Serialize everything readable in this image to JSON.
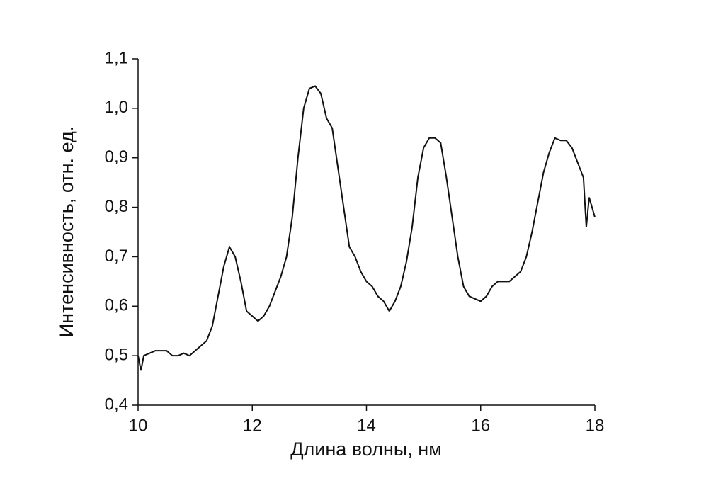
{
  "chart_data": {
    "type": "line",
    "x_label": "Длина волны, нм",
    "y_label": "Интенсивность, отн. ед.",
    "xlim": [
      10,
      18
    ],
    "xticks": [
      10,
      12,
      14,
      16,
      18
    ],
    "ylim": [
      0.4,
      1.1
    ],
    "yticks": [
      {
        "value": 0.4,
        "label": "0,4"
      },
      {
        "value": 0.5,
        "label": "0,5"
      },
      {
        "value": 0.6,
        "label": "0,6"
      },
      {
        "value": 0.7,
        "label": "0,7"
      },
      {
        "value": 0.8,
        "label": "0,8"
      },
      {
        "value": 0.9,
        "label": "0,9"
      },
      {
        "value": 1.0,
        "label": "1,0"
      },
      {
        "value": 1.1,
        "label": "1,1"
      }
    ],
    "color": "#111111",
    "x": [
      10.0,
      10.05,
      10.1,
      10.2,
      10.3,
      10.4,
      10.5,
      10.6,
      10.7,
      10.8,
      10.9,
      11.0,
      11.1,
      11.2,
      11.3,
      11.4,
      11.5,
      11.6,
      11.7,
      11.8,
      11.9,
      12.0,
      12.1,
      12.2,
      12.3,
      12.4,
      12.5,
      12.6,
      12.7,
      12.8,
      12.9,
      13.0,
      13.1,
      13.2,
      13.3,
      13.4,
      13.5,
      13.6,
      13.7,
      13.8,
      13.9,
      14.0,
      14.1,
      14.2,
      14.3,
      14.4,
      14.5,
      14.6,
      14.7,
      14.8,
      14.9,
      15.0,
      15.1,
      15.2,
      15.3,
      15.4,
      15.5,
      15.6,
      15.7,
      15.8,
      15.9,
      16.0,
      16.1,
      16.2,
      16.3,
      16.4,
      16.5,
      16.6,
      16.7,
      16.8,
      16.9,
      17.0,
      17.1,
      17.2,
      17.3,
      17.4,
      17.5,
      17.6,
      17.7,
      17.8,
      17.85,
      17.9,
      18.0
    ],
    "values": [
      0.5,
      0.47,
      0.5,
      0.505,
      0.51,
      0.51,
      0.51,
      0.5,
      0.5,
      0.505,
      0.5,
      0.51,
      0.52,
      0.53,
      0.56,
      0.62,
      0.68,
      0.72,
      0.7,
      0.65,
      0.59,
      0.58,
      0.57,
      0.58,
      0.6,
      0.63,
      0.66,
      0.7,
      0.78,
      0.9,
      1.0,
      1.04,
      1.045,
      1.03,
      0.98,
      0.96,
      0.88,
      0.8,
      0.72,
      0.7,
      0.67,
      0.65,
      0.64,
      0.62,
      0.61,
      0.59,
      0.61,
      0.64,
      0.69,
      0.76,
      0.86,
      0.92,
      0.94,
      0.94,
      0.93,
      0.86,
      0.78,
      0.7,
      0.64,
      0.62,
      0.615,
      0.61,
      0.62,
      0.64,
      0.65,
      0.65,
      0.65,
      0.66,
      0.67,
      0.7,
      0.75,
      0.81,
      0.87,
      0.91,
      0.94,
      0.935,
      0.935,
      0.92,
      0.89,
      0.86,
      0.76,
      0.82,
      0.78
    ]
  }
}
